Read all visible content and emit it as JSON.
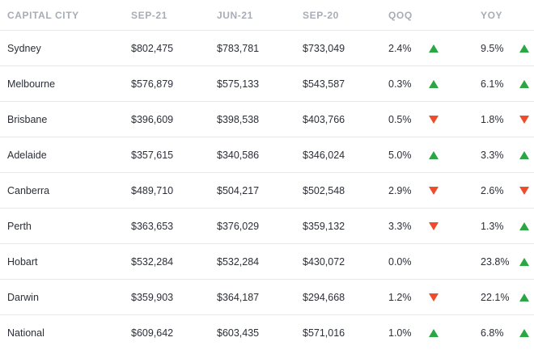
{
  "headers": [
    "CAPITAL CITY",
    "SEP-21",
    "JUN-21",
    "SEP-20",
    "QOQ",
    "YOY"
  ],
  "colors": {
    "up": "#2aa744",
    "down": "#ef4a2a"
  },
  "rows": [
    {
      "city": "Sydney",
      "sep21": "$802,475",
      "jun21": "$783,781",
      "sep20": "$733,049",
      "qoq": "2.4%",
      "qoq_dir": "up",
      "yoy": "9.5%",
      "yoy_dir": "up"
    },
    {
      "city": "Melbourne",
      "sep21": "$576,879",
      "jun21": "$575,133",
      "sep20": "$543,587",
      "qoq": "0.3%",
      "qoq_dir": "up",
      "yoy": "6.1%",
      "yoy_dir": "up"
    },
    {
      "city": "Brisbane",
      "sep21": "$396,609",
      "jun21": "$398,538",
      "sep20": "$403,766",
      "qoq": "0.5%",
      "qoq_dir": "down",
      "yoy": "1.8%",
      "yoy_dir": "down"
    },
    {
      "city": "Adelaide",
      "sep21": "$357,615",
      "jun21": "$340,586",
      "sep20": "$346,024",
      "qoq": "5.0%",
      "qoq_dir": "up",
      "yoy": "3.3%",
      "yoy_dir": "up"
    },
    {
      "city": "Canberra",
      "sep21": "$489,710",
      "jun21": "$504,217",
      "sep20": "$502,548",
      "qoq": "2.9%",
      "qoq_dir": "down",
      "yoy": "2.6%",
      "yoy_dir": "down"
    },
    {
      "city": "Perth",
      "sep21": "$363,653",
      "jun21": "$376,029",
      "sep20": "$359,132",
      "qoq": "3.3%",
      "qoq_dir": "down",
      "yoy": "1.3%",
      "yoy_dir": "up"
    },
    {
      "city": "Hobart",
      "sep21": "$532,284",
      "jun21": "$532,284",
      "sep20": "$430,072",
      "qoq": "0.0%",
      "qoq_dir": "none",
      "yoy": "23.8%",
      "yoy_dir": "up"
    },
    {
      "city": "Darwin",
      "sep21": "$359,903",
      "jun21": "$364,187",
      "sep20": "$294,668",
      "qoq": "1.2%",
      "qoq_dir": "down",
      "yoy": "22.1%",
      "yoy_dir": "up"
    },
    {
      "city": "National",
      "sep21": "$609,642",
      "jun21": "$603,435",
      "sep20": "$571,016",
      "qoq": "1.0%",
      "qoq_dir": "up",
      "yoy": "6.8%",
      "yoy_dir": "up"
    }
  ]
}
